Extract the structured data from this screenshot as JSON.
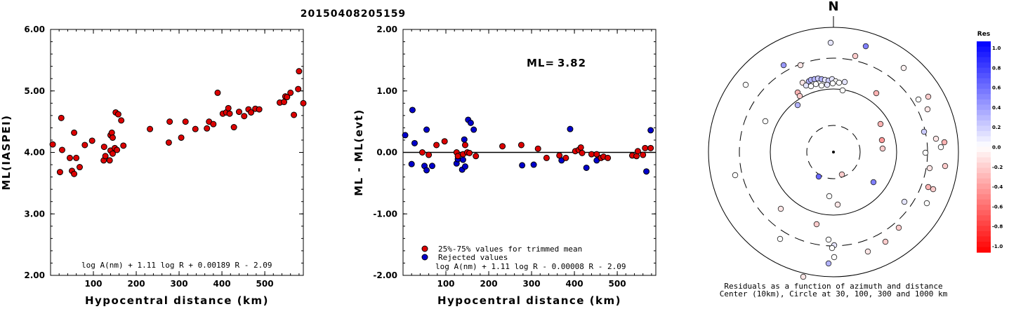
{
  "title": "20150408205159",
  "chart_data": [
    {
      "type": "scatter",
      "title": "",
      "xlabel": "Hypocentral distance (km)",
      "ylabel": "ML(IASPEI)",
      "xlim": [
        0,
        590
      ],
      "ylim": [
        2.0,
        6.0
      ],
      "xticks": [
        "100",
        "200",
        "300",
        "400",
        "500"
      ],
      "yticks": [
        "2.00",
        "3.00",
        "4.00",
        "5.00",
        "6.00"
      ],
      "formula": "log A(nm) + 1.11 log R + 0.00189 R - 2.09",
      "marker_color": "#dd0000",
      "points": [
        [
          5,
          4.13
        ],
        [
          22,
          3.68
        ],
        [
          25,
          4.56
        ],
        [
          27,
          4.04
        ],
        [
          45,
          3.91
        ],
        [
          50,
          3.7
        ],
        [
          55,
          3.65
        ],
        [
          55,
          4.32
        ],
        [
          60,
          3.91
        ],
        [
          68,
          3.76
        ],
        [
          80,
          4.12
        ],
        [
          97,
          4.19
        ],
        [
          124,
          3.87
        ],
        [
          125,
          4.09
        ],
        [
          128,
          3.94
        ],
        [
          138,
          3.87
        ],
        [
          140,
          4.03
        ],
        [
          140,
          4.28
        ],
        [
          143,
          4.32
        ],
        [
          145,
          3.98
        ],
        [
          145,
          4.24
        ],
        [
          150,
          4.07
        ],
        [
          152,
          4.65
        ],
        [
          155,
          4.04
        ],
        [
          158,
          4.62
        ],
        [
          165,
          4.52
        ],
        [
          170,
          4.11
        ],
        [
          232,
          4.38
        ],
        [
          276,
          4.16
        ],
        [
          278,
          4.5
        ],
        [
          305,
          4.24
        ],
        [
          315,
          4.5
        ],
        [
          338,
          4.38
        ],
        [
          365,
          4.39
        ],
        [
          370,
          4.5
        ],
        [
          380,
          4.46
        ],
        [
          390,
          4.97
        ],
        [
          402,
          4.63
        ],
        [
          410,
          4.65
        ],
        [
          415,
          4.72
        ],
        [
          418,
          4.63
        ],
        [
          428,
          4.41
        ],
        [
          440,
          4.66
        ],
        [
          452,
          4.59
        ],
        [
          462,
          4.7
        ],
        [
          468,
          4.65
        ],
        [
          478,
          4.71
        ],
        [
          487,
          4.7
        ],
        [
          535,
          4.81
        ],
        [
          545,
          4.82
        ],
        [
          548,
          4.91
        ],
        [
          552,
          4.9
        ],
        [
          560,
          4.97
        ],
        [
          568,
          4.61
        ],
        [
          578,
          5.03
        ],
        [
          580,
          5.32
        ],
        [
          590,
          4.8
        ]
      ]
    },
    {
      "type": "scatter",
      "title": "",
      "xlabel": "Hypocentral distance (km)",
      "ylabel": "ML - ML(evt)",
      "xlim": [
        0,
        590
      ],
      "ylim": [
        -2.0,
        2.0
      ],
      "xticks": [
        "100",
        "200",
        "300",
        "400",
        "500"
      ],
      "yticks": [
        "-2.00",
        "-1.00",
        "0.00",
        "1.00",
        "2.00"
      ],
      "ml_label": "ML=",
      "ml_value": "3.82",
      "formula": "log A(nm) + 1.11 log R - 0.00008 R - 2.09",
      "legend": [
        {
          "label": "25%-75% values for trimmed mean",
          "color": "#dd0000"
        },
        {
          "label": "Rejected values",
          "color": "#0000cc"
        }
      ],
      "trimmed_points": [
        [
          45,
          0.0
        ],
        [
          60,
          -0.04
        ],
        [
          78,
          0.12
        ],
        [
          97,
          0.18
        ],
        [
          125,
          0.0
        ],
        [
          128,
          -0.06
        ],
        [
          140,
          -0.03
        ],
        [
          145,
          0.12
        ],
        [
          150,
          0.0
        ],
        [
          155,
          -0.01
        ],
        [
          170,
          -0.06
        ],
        [
          232,
          0.1
        ],
        [
          276,
          0.12
        ],
        [
          315,
          0.06
        ],
        [
          335,
          -0.09
        ],
        [
          365,
          -0.05
        ],
        [
          380,
          -0.09
        ],
        [
          402,
          0.02
        ],
        [
          410,
          0.04
        ],
        [
          415,
          0.08
        ],
        [
          418,
          -0.01
        ],
        [
          440,
          -0.03
        ],
        [
          452,
          -0.03
        ],
        [
          462,
          -0.09
        ],
        [
          468,
          -0.07
        ],
        [
          478,
          -0.09
        ],
        [
          535,
          -0.05
        ],
        [
          545,
          -0.06
        ],
        [
          548,
          0.02
        ],
        [
          560,
          -0.04
        ],
        [
          565,
          0.07
        ],
        [
          578,
          0.07
        ]
      ],
      "rejected_points": [
        [
          5,
          0.28
        ],
        [
          20,
          -0.19
        ],
        [
          22,
          0.69
        ],
        [
          27,
          0.15
        ],
        [
          50,
          -0.22
        ],
        [
          55,
          -0.29
        ],
        [
          55,
          0.37
        ],
        [
          68,
          -0.22
        ],
        [
          125,
          -0.18
        ],
        [
          128,
          -0.11
        ],
        [
          138,
          -0.28
        ],
        [
          140,
          -0.12
        ],
        [
          143,
          0.21
        ],
        [
          145,
          -0.23
        ],
        [
          152,
          0.53
        ],
        [
          158,
          0.48
        ],
        [
          165,
          0.37
        ],
        [
          278,
          -0.21
        ],
        [
          305,
          -0.2
        ],
        [
          370,
          -0.13
        ],
        [
          390,
          0.38
        ],
        [
          428,
          -0.25
        ],
        [
          452,
          -0.13
        ],
        [
          568,
          -0.31
        ],
        [
          578,
          0.36
        ]
      ]
    },
    {
      "type": "scatter",
      "title": "N",
      "caption_line1": "Residuals as a function of azimuth and distance",
      "caption_line2": "Center (10km), Circle at 30, 100, 300 and 1000 km",
      "colorbar_title": "Res",
      "colorbar_ticks": [
        "1.0",
        "0.8",
        "0.6",
        "0.4",
        "0.2",
        "0.0",
        "-0.2",
        "-0.4",
        "-0.6",
        "-0.8",
        "-1.0"
      ],
      "colorbar_range": [
        -1.0,
        1.0
      ],
      "stations": [
        [
          1183,
          61,
          0.1
        ],
        [
          1233,
          66,
          0.5
        ],
        [
          1218,
          80,
          -0.2
        ],
        [
          1116,
          93,
          0.4
        ],
        [
          1287,
          97,
          -0.05
        ],
        [
          1140,
          93,
          -0.1
        ],
        [
          1062,
          121,
          0.0
        ],
        [
          1152,
          116,
          0.3
        ],
        [
          1155,
          114,
          0.3
        ],
        [
          1160,
          113,
          0.3
        ],
        [
          1165,
          112,
          0.2
        ],
        [
          1170,
          113,
          0.3
        ],
        [
          1175,
          114,
          0.1
        ],
        [
          1180,
          115,
          0.2
        ],
        [
          1185,
          113,
          0.1
        ],
        [
          1190,
          116,
          0.0
        ],
        [
          1143,
          118,
          -0.1
        ],
        [
          1148,
          122,
          0.1
        ],
        [
          1155,
          123,
          0.0
        ],
        [
          1162,
          120,
          0.0
        ],
        [
          1170,
          122,
          0.0
        ],
        [
          1178,
          121,
          0.1
        ],
        [
          1186,
          119,
          0.0
        ],
        [
          1195,
          118,
          0.0
        ],
        [
          1203,
          117,
          0.1
        ],
        [
          1200,
          129,
          0.0
        ],
        [
          1136,
          132,
          -0.3
        ],
        [
          1139,
          137,
          -0.2
        ],
        [
          1248,
          133,
          -0.3
        ],
        [
          1136,
          150,
          0.3
        ],
        [
          1308,
          142,
          0.0
        ],
        [
          1322,
          138,
          -0.2
        ],
        [
          1321,
          156,
          -0.1
        ],
        [
          1090,
          173,
          0.0
        ],
        [
          1254,
          177,
          -0.3
        ],
        [
          1256,
          200,
          -0.4
        ],
        [
          1316,
          188,
          0.2
        ],
        [
          1333,
          198,
          -0.1
        ],
        [
          1340,
          210,
          0.0
        ],
        [
          1345,
          203,
          -0.3
        ],
        [
          1318,
          218,
          0.0
        ],
        [
          1346,
          237,
          -0.2
        ],
        [
          1324,
          240,
          -0.1
        ],
        [
          1047,
          250,
          0.0
        ],
        [
          1257,
          212,
          -0.2
        ],
        [
          1199,
          249,
          -0.2
        ],
        [
          1166,
          252,
          0.6
        ],
        [
          1244,
          260,
          0.5
        ],
        [
          1322,
          267,
          -0.3
        ],
        [
          1329,
          270,
          -0.2
        ],
        [
          1181,
          280,
          0.0
        ],
        [
          1288,
          288,
          0.1
        ],
        [
          1112,
          298,
          -0.1
        ],
        [
          1193,
          292,
          -0.1
        ],
        [
          1320,
          290,
          0.0
        ],
        [
          1163,
          320,
          -0.2
        ],
        [
          1280,
          325,
          -0.2
        ],
        [
          1111,
          341,
          0.0
        ],
        [
          1180,
          342,
          0.0
        ],
        [
          1261,
          345,
          -0.2
        ],
        [
          1188,
          350,
          0.1
        ],
        [
          1185,
          354,
          0.0
        ],
        [
          1236,
          359,
          -0.1
        ],
        [
          1188,
          367,
          0.0
        ],
        [
          1180,
          376,
          0.3
        ],
        [
          1144,
          395,
          -0.1
        ]
      ]
    }
  ]
}
